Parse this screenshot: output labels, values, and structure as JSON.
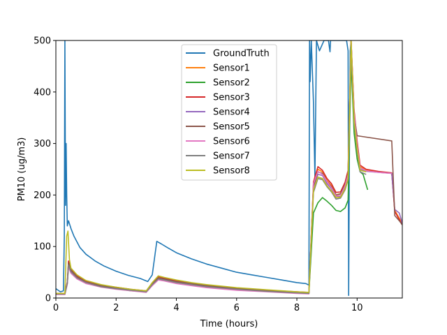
{
  "chart_data": {
    "type": "line",
    "xlabel": "Time (hours)",
    "ylabel": "PM10 (ug/m3)",
    "xlim": [
      0,
      11.5
    ],
    "ylim": [
      0,
      500
    ],
    "xticks": [
      0,
      2,
      4,
      6,
      8,
      10
    ],
    "yticks": [
      0,
      100,
      200,
      300,
      400,
      500
    ],
    "grid": false,
    "legend_position": "top-center",
    "series": [
      {
        "name": "GroundTruth",
        "color": "#1f77b4",
        "x": [
          0,
          0.15,
          0.25,
          0.28,
          0.3,
          0.32,
          0.34,
          0.36,
          0.38,
          0.42,
          0.5,
          0.6,
          0.8,
          1.0,
          1.3,
          1.6,
          2.0,
          2.4,
          2.8,
          3.05,
          3.2,
          3.35,
          3.5,
          3.7,
          4.0,
          4.5,
          5.0,
          5.5,
          6.0,
          6.5,
          7.0,
          7.5,
          8.0,
          8.3,
          8.4,
          8.42,
          8.44,
          8.48,
          8.55,
          8.6,
          8.65,
          8.75,
          8.9,
          9.05,
          9.1,
          9.12,
          9.3,
          9.5,
          9.65,
          9.7,
          9.72,
          9.74,
          9.77,
          9.8
        ],
        "y": [
          18,
          12,
          14,
          120,
          500,
          180,
          300,
          200,
          140,
          150,
          135,
          120,
          98,
          85,
          72,
          62,
          52,
          44,
          38,
          32,
          45,
          110,
          105,
          98,
          88,
          76,
          66,
          58,
          50,
          45,
          40,
          35,
          30,
          28,
          25,
          500,
          420,
          500,
          380,
          235,
          500,
          480,
          500,
          500,
          478,
          500,
          500,
          500,
          500,
          480,
          5,
          250,
          480,
          500
        ]
      },
      {
        "name": "Sensor1",
        "color": "#ff7f0e",
        "x": [
          0,
          0.3,
          0.38,
          0.42,
          0.5,
          0.7,
          1.0,
          1.5,
          2.0,
          2.5,
          3.0,
          3.2,
          3.4,
          3.6,
          4.0,
          4.5,
          5.0,
          6.0,
          7.0,
          8.0,
          8.4,
          8.55,
          8.7,
          8.85,
          9.0,
          9.15,
          9.3,
          9.45,
          9.6,
          9.7,
          9.8,
          9.9,
          10.0,
          10.1,
          10.3,
          10.7,
          11.15,
          11.25,
          11.4,
          11.5
        ],
        "y": [
          8,
          8,
          30,
          70,
          55,
          42,
          32,
          24,
          20,
          16,
          13,
          28,
          40,
          38,
          33,
          28,
          24,
          18,
          14,
          11,
          10,
          220,
          250,
          245,
          228,
          218,
          200,
          203,
          222,
          245,
          500,
          360,
          300,
          255,
          248,
          245,
          242,
          170,
          155,
          145
        ]
      },
      {
        "name": "Sensor2",
        "color": "#2ca02c",
        "x": [
          0,
          0.3,
          0.38,
          0.42,
          0.5,
          0.7,
          1.0,
          1.5,
          2.0,
          2.5,
          3.0,
          3.2,
          3.4,
          3.6,
          4.0,
          4.5,
          5.0,
          6.0,
          7.0,
          8.0,
          8.4,
          8.55,
          8.7,
          8.85,
          9.0,
          9.15,
          9.3,
          9.45,
          9.6,
          9.7,
          9.8,
          9.9,
          10.0,
          10.1,
          10.2,
          10.35
        ],
        "y": [
          7,
          7,
          28,
          62,
          50,
          38,
          29,
          22,
          18,
          14,
          12,
          25,
          37,
          35,
          30,
          26,
          22,
          17,
          13,
          10,
          9,
          165,
          185,
          195,
          188,
          180,
          170,
          168,
          175,
          190,
          460,
          320,
          270,
          245,
          240,
          210
        ]
      },
      {
        "name": "Sensor3",
        "color": "#d62728",
        "x": [
          0,
          0.3,
          0.38,
          0.42,
          0.5,
          0.7,
          1.0,
          1.5,
          2.0,
          2.5,
          3.0,
          3.2,
          3.4,
          3.6,
          4.0,
          4.5,
          5.0,
          6.0,
          7.0,
          8.0,
          8.4,
          8.55,
          8.7,
          8.85,
          9.0,
          9.15,
          9.3,
          9.45,
          9.6,
          9.7,
          9.8,
          9.9,
          10.0,
          10.1,
          10.3,
          10.7,
          11.15,
          11.25,
          11.4,
          11.5
        ],
        "y": [
          9,
          9,
          32,
          72,
          56,
          43,
          33,
          25,
          21,
          17,
          14,
          29,
          42,
          39,
          34,
          29,
          25,
          19,
          15,
          12,
          11,
          225,
          255,
          248,
          232,
          222,
          205,
          206,
          225,
          248,
          500,
          365,
          305,
          258,
          250,
          246,
          243,
          168,
          152,
          142
        ]
      },
      {
        "name": "Sensor4",
        "color": "#9467bd",
        "x": [
          0,
          0.3,
          0.38,
          0.42,
          0.5,
          0.7,
          1.0,
          1.5,
          2.0,
          2.5,
          3.0,
          3.2,
          3.4,
          3.6,
          4.0,
          4.5,
          5.0,
          6.0,
          7.0,
          8.0,
          8.4,
          8.55,
          8.7,
          8.85,
          9.0,
          9.15,
          9.3,
          9.45,
          9.6,
          9.7,
          9.8,
          9.9,
          10.0,
          10.1,
          10.3,
          10.7,
          11.15,
          11.25,
          11.4,
          11.5
        ],
        "y": [
          7,
          7,
          29,
          66,
          52,
          40,
          30,
          23,
          19,
          15,
          12,
          26,
          38,
          36,
          31,
          27,
          23,
          17,
          13,
          10,
          9,
          215,
          240,
          238,
          222,
          212,
          196,
          198,
          216,
          238,
          490,
          350,
          295,
          250,
          246,
          244,
          242,
          172,
          165,
          145
        ]
      },
      {
        "name": "Sensor5",
        "color": "#8c564b",
        "x": [
          0,
          0.3,
          0.38,
          0.42,
          0.5,
          0.7,
          1.0,
          1.5,
          2.0,
          2.5,
          3.0,
          3.2,
          3.4,
          3.6,
          4.0,
          4.5,
          5.0,
          6.0,
          7.0,
          8.0,
          8.4,
          8.55,
          8.7,
          8.85,
          9.0,
          9.15,
          9.3,
          9.45,
          9.6,
          9.7,
          9.8,
          9.9,
          10.0,
          11.15,
          11.25,
          11.4,
          11.5
        ],
        "y": [
          8,
          8,
          30,
          68,
          54,
          41,
          31,
          24,
          20,
          16,
          13,
          27,
          39,
          37,
          32,
          28,
          24,
          18,
          14,
          11,
          10,
          218,
          245,
          242,
          226,
          216,
          200,
          202,
          220,
          242,
          495,
          355,
          315,
          305,
          160,
          150,
          142
        ]
      },
      {
        "name": "Sensor6",
        "color": "#e377c2",
        "x": [
          0,
          0.3,
          0.38,
          0.42,
          0.5,
          0.7,
          1.0,
          1.5,
          2.0,
          2.5,
          3.0,
          3.2,
          3.4,
          3.6,
          4.0,
          4.5,
          5.0,
          6.0,
          7.0,
          8.0,
          8.4,
          8.55,
          8.7,
          8.85,
          9.0,
          9.15,
          9.3,
          9.45,
          9.6,
          9.7,
          9.8,
          9.9,
          10.0,
          10.1,
          10.3,
          10.7,
          11.15
        ],
        "y": [
          7,
          7,
          27,
          60,
          48,
          37,
          28,
          21,
          17,
          14,
          11,
          24,
          35,
          33,
          28,
          24,
          20,
          15,
          12,
          9,
          8,
          222,
          246,
          240,
          226,
          214,
          198,
          199,
          218,
          240,
          500,
          358,
          298,
          253,
          247,
          244,
          242
        ]
      },
      {
        "name": "Sensor7",
        "color": "#7f7f7f",
        "x": [
          0,
          0.3,
          0.38,
          0.42,
          0.5,
          0.7,
          1.0,
          1.5,
          2.0,
          2.5,
          3.0,
          3.2,
          3.4,
          3.6,
          4.0,
          4.5,
          5.0,
          6.0,
          7.0,
          8.0,
          8.4,
          8.55,
          8.7,
          8.85,
          9.0,
          9.15,
          9.3,
          9.45,
          9.6,
          9.7,
          9.8,
          9.9,
          10.0,
          10.1,
          10.3
        ],
        "y": [
          8,
          8,
          29,
          64,
          51,
          39,
          30,
          22,
          18,
          15,
          12,
          26,
          37,
          35,
          30,
          26,
          22,
          17,
          13,
          10,
          9,
          205,
          232,
          230,
          216,
          206,
          192,
          194,
          210,
          230,
          480,
          340,
          285,
          245,
          240
        ]
      },
      {
        "name": "Sensor8",
        "color": "#bcbd22",
        "x": [
          0,
          0.3,
          0.36,
          0.4,
          0.45,
          0.5,
          0.7,
          1.0,
          1.5,
          2.0,
          2.5,
          3.0,
          3.2,
          3.4,
          3.6,
          4.0,
          4.5,
          5.0,
          6.0,
          7.0,
          8.0,
          8.4,
          8.55,
          8.7,
          8.85,
          9.0,
          9.15,
          9.3,
          9.45,
          9.6,
          9.7,
          9.8,
          9.9,
          10.0,
          10.1,
          10.3
        ],
        "y": [
          9,
          9,
          120,
          130,
          75,
          58,
          45,
          34,
          26,
          21,
          17,
          14,
          30,
          43,
          40,
          35,
          30,
          26,
          20,
          16,
          12,
          11,
          210,
          235,
          232,
          218,
          208,
          195,
          196,
          212,
          232,
          500,
          345,
          290,
          248,
          245
        ]
      }
    ]
  }
}
